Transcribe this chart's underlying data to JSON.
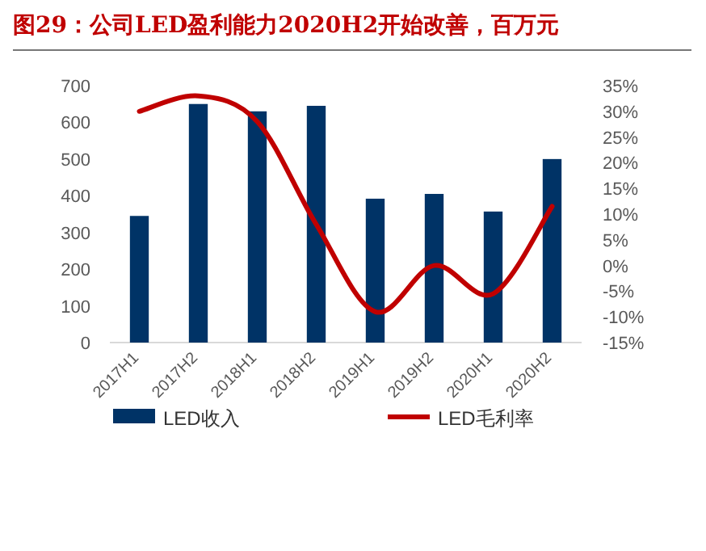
{
  "chart_data": {
    "type": "bar",
    "title": "图29：公司LED盈利能力2020H2开始改善，百万元",
    "categories": [
      "2017H1",
      "2017H2",
      "2018H1",
      "2018H2",
      "2019H1",
      "2019H2",
      "2020H1",
      "2020H2"
    ],
    "series": [
      {
        "name": "LED收入",
        "color": "#003366",
        "values": [
          345,
          650,
          630,
          645,
          392,
          405,
          357,
          500
        ]
      },
      {
        "name": "LED毛利率",
        "type": "line",
        "axis": "y2",
        "color": "#c00000",
        "values": [
          30,
          33,
          28,
          8,
          -9,
          0,
          -5.5,
          11.5
        ]
      }
    ],
    "ylim": [
      0,
      700
    ],
    "yticks": [
      0,
      100,
      200,
      300,
      400,
      500,
      600,
      700
    ],
    "y2lim": [
      -15,
      35
    ],
    "y2ticks": [
      {
        "value": 35,
        "label": "35%"
      },
      {
        "value": 30,
        "label": "30%"
      },
      {
        "value": 25,
        "label": "25%"
      },
      {
        "value": 20,
        "label": "20%"
      },
      {
        "value": 15,
        "label": "15%"
      },
      {
        "value": 10,
        "label": "10%"
      },
      {
        "value": 5,
        "label": "5%"
      },
      {
        "value": 0,
        "label": "0%"
      },
      {
        "value": -5,
        "label": "-5%"
      },
      {
        "value": -10,
        "label": "-10%"
      },
      {
        "value": -15,
        "label": "-15%"
      }
    ],
    "legend": "bottom",
    "grid": false
  }
}
